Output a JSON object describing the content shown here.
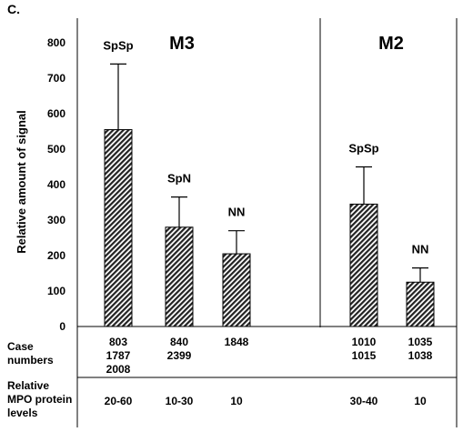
{
  "panel_label": "C.",
  "chart_data": {
    "type": "bar",
    "ylabel": "Relative amount of signal",
    "ylim": [
      0,
      800
    ],
    "yticks": [
      0,
      100,
      200,
      300,
      400,
      500,
      600,
      700,
      800
    ],
    "grid": false,
    "groups": [
      {
        "title": "M3",
        "bars": [
          {
            "label": "SpSp",
            "value": 555,
            "error": 185,
            "case_numbers": [
              "803",
              "1787",
              "2008"
            ],
            "mpo": "20-60"
          },
          {
            "label": "SpN",
            "value": 280,
            "error": 85,
            "case_numbers": [
              "840",
              "2399"
            ],
            "mpo": "10-30"
          },
          {
            "label": "NN",
            "value": 205,
            "error": 65,
            "case_numbers": [
              "1848"
            ],
            "mpo": "10"
          }
        ]
      },
      {
        "title": "M2",
        "bars": [
          {
            "label": "SpSp",
            "value": 345,
            "error": 105,
            "case_numbers": [
              "1010",
              "1015"
            ],
            "mpo": "30-40"
          },
          {
            "label": "NN",
            "value": 125,
            "error": 40,
            "case_numbers": [
              "1035",
              "1038"
            ],
            "mpo": "10"
          }
        ]
      }
    ],
    "bar_fill": "hatched",
    "bar_color": "#222222"
  },
  "table": {
    "case_numbers_label": [
      "Case",
      "numbers"
    ],
    "mpo_label": [
      "Relative",
      "MPO protein",
      "levels"
    ]
  }
}
